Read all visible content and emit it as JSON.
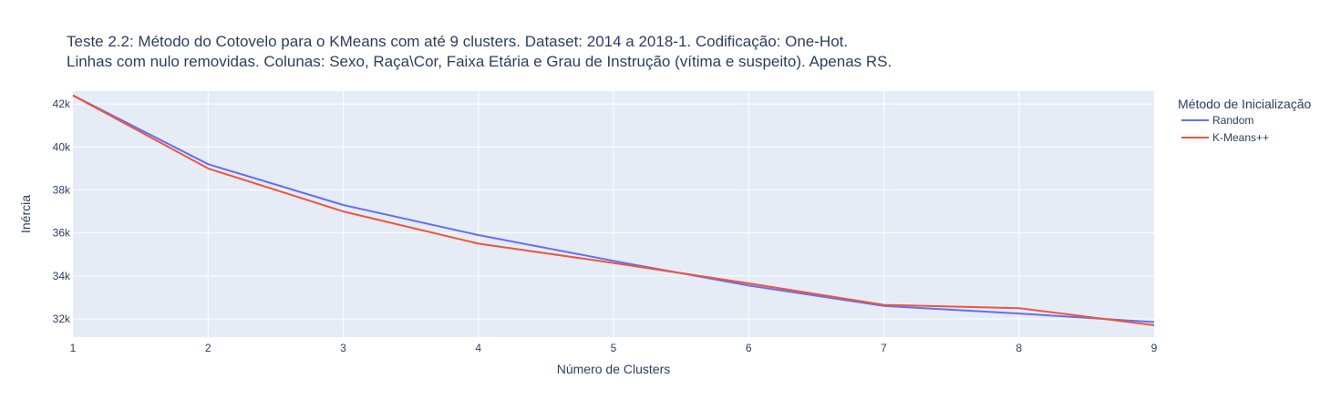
{
  "chart_data": {
    "type": "line",
    "title_lines": [
      "Teste 2.2: Método do Cotovelo para o KMeans com até 9 clusters. Dataset: 2014 a 2018-1. Codificação: One-Hot.",
      "Linhas com nulo removidas. Colunas: Sexo, Raça\\Cor, Faixa Etária e Grau de Instrução (vítima e suspeito). Apenas RS."
    ],
    "xlabel": "Número de Clusters",
    "ylabel": "Inércia",
    "x": [
      1,
      2,
      3,
      4,
      5,
      6,
      7,
      8,
      9
    ],
    "x_ticks": [
      "1",
      "2",
      "3",
      "4",
      "5",
      "6",
      "7",
      "8",
      "9"
    ],
    "y_ticks": [
      {
        "value": 32000,
        "label": "32k"
      },
      {
        "value": 34000,
        "label": "34k"
      },
      {
        "value": 36000,
        "label": "36k"
      },
      {
        "value": 38000,
        "label": "38k"
      },
      {
        "value": 40000,
        "label": "40k"
      },
      {
        "value": 42000,
        "label": "42k"
      }
    ],
    "xlim": [
      1,
      9
    ],
    "ylim": [
      31150,
      42600
    ],
    "grid": true,
    "legend_title": "Método de Inicialização",
    "legend_position": "right",
    "series": [
      {
        "name": "Random",
        "color": "#636efa",
        "values": [
          42400,
          39200,
          37300,
          35900,
          34700,
          33550,
          32600,
          32250,
          31850
        ]
      },
      {
        "name": "K-Means++",
        "color": "#ef553b",
        "values": [
          42400,
          39000,
          37000,
          35500,
          34600,
          33650,
          32650,
          32500,
          31700
        ]
      }
    ],
    "plot_bgcolor": "#e5ecf6",
    "grid_color": "#ffffff",
    "text_color": "#2a3f5f"
  }
}
